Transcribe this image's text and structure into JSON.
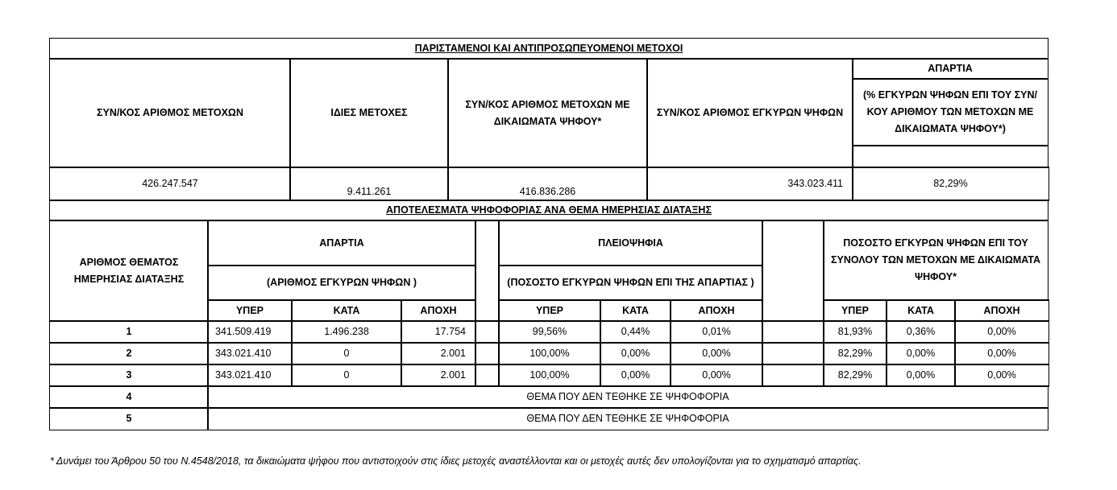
{
  "summary": {
    "title": "ΠΑΡΙΣΤΑΜΕΝΟΙ ΚΑΙ ΑΝΤΙΠΡΟΣΩΠΕΥΟΜΕΝΟΙ ΜΕΤΟΧΟΙ",
    "headers": [
      "ΣΥΝ/ΚΟΣ ΑΡΙΘΜΟΣ  ΜΕΤΟΧΩΝ",
      "ΙΔΙΕΣ ΜΕΤΟΧΕΣ",
      "ΣΥΝ/ΚΟΣ ΑΡΙΘΜΟΣ  ΜΕΤΟΧΩΝ ΜΕ ΔΙΚΑΙΩΜΑΤΑ ΨΗΦΟΥ*",
      "ΣΥΝ/ΚΟΣ ΑΡΙΘΜΟΣ ΕΓΚΥΡΩΝ ΨΗΦΩΝ",
      "ΑΠΑΡΤΙΑ"
    ],
    "apartia_sub": "(% ΕΓΚΥΡΩΝ ΨΗΦΩΝ ΕΠΙ ΤΟΥ ΣΥΝ/ΚΟΥ ΑΡΙΘΜΟΥ ΤΩΝ ΜΕΤΟΧΩΝ  ΜΕ ΔΙΚΑΙΩΜΑΤΑ ΨΗΦΟΥ*)",
    "values": [
      "426.247.547",
      "9.411.261",
      "416.836.286",
      "343.023.411",
      "82,29%"
    ]
  },
  "results": {
    "title": "ΑΠΟΤΕΛΕΣΜΑΤΑ ΨΗΦΟΦΟΡΙΑΣ ΑΝΑ ΘΕΜΑ ΗΜΕΡΗΣΙΑΣ ΔΙΑΤΑΞΗΣ",
    "item_header": "ΑΡΙΘΜΟΣ ΘΕΜΑΤΟΣ ΗΜΕΡΗΣΙΑΣ ΔΙΑΤΑΞΗΣ",
    "apartia": "ΑΠΑΡΤΙΑ",
    "apartia_sub": "(ΑΡΙΘΜΟΣ ΕΓΚΥΡΩΝ ΨΗΦΩΝ )",
    "pleio": "ΠΛΕΙΟΨΗΦΙΑ",
    "pleio_sub": "(ΠΟΣΟΣΤΟ ΕΓΚΥΡΩΝ ΨΗΦΩΝ ΕΠΙ ΤΗΣ ΑΠΑΡΤΙΑΣ )",
    "pct_header": "ΠΟΣΟΣΤΟ ΕΓΚΥΡΩΝ ΨΗΦΩΝ ΕΠΙ ΤΟΥ ΣΥΝΟΛΟΥ ΤΩΝ ΜΕΤΟΧΩΝ ΜΕ ΔΙΚΑΙΩΜΑΤΑ ΨΗΦΟΥ*",
    "cols": [
      "ΥΠΕΡ",
      "ΚΑΤΑ",
      "ΑΠΟΧΗ"
    ],
    "rows": [
      {
        "item": "1",
        "v": [
          "341.509.419",
          "1.496.238",
          "17.754",
          "99,56%",
          "0,44%",
          "0,01%",
          "81,93%",
          "0,36%",
          "0,00%"
        ]
      },
      {
        "item": "2",
        "v": [
          "343.021.410",
          "0",
          "2.001",
          "100,00%",
          "0,00%",
          "0,00%",
          "82,29%",
          "0,00%",
          "0,00%"
        ]
      },
      {
        "item": "3",
        "v": [
          "343.021.410",
          "0",
          "2.001",
          "100,00%",
          "0,00%",
          "0,00%",
          "82,29%",
          "0,00%",
          "0,00%"
        ]
      },
      {
        "item": "4",
        "note": "ΘΕΜΑ ΠΟΥ ΔΕΝ ΤΕΘΗΚΕ ΣΕ ΨΗΦΟΦΟΡΙΑ"
      },
      {
        "item": "5",
        "note": "ΘΕΜΑ ΠΟΥ ΔΕΝ ΤΕΘΗΚΕ ΣΕ ΨΗΦΟΦΟΡΙΑ"
      }
    ]
  },
  "footnote": "* Δυνάμει του Άρθρου 50 του Ν.4548/2018, τα δικαιώματα ψήφου που αντιστοιχούν στις ίδιες μετοχές αναστέλλονται και οι μετοχές αυτές δεν υπολογίζονται για το σχηματισμό απαρτίας."
}
